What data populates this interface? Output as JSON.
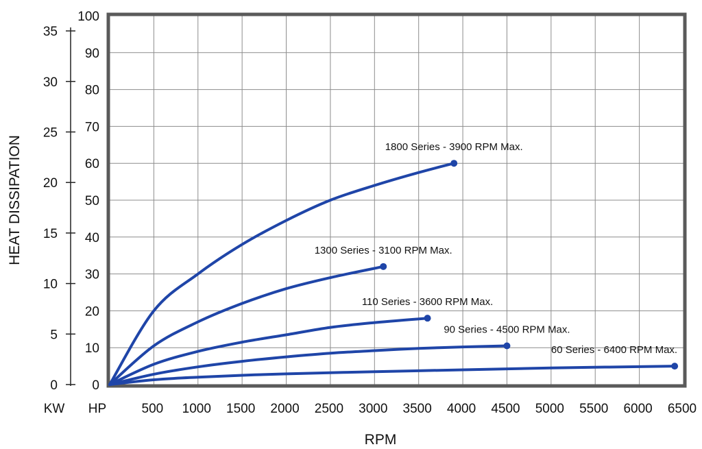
{
  "chart_data": {
    "type": "line",
    "xlabel": "RPM",
    "ylabel": "HEAT DISSIPATION",
    "xlim": [
      0,
      6500
    ],
    "x_ticks": [
      500,
      1000,
      1500,
      2000,
      2500,
      3000,
      3500,
      4000,
      4500,
      5000,
      5500,
      6000,
      6500
    ],
    "y_axes": [
      {
        "unit": "HP",
        "range": [
          0,
          100
        ],
        "ticks": [
          0,
          10,
          20,
          30,
          40,
          50,
          60,
          70,
          80,
          90,
          100
        ]
      },
      {
        "unit": "KW",
        "range": [
          0,
          36.5
        ],
        "ticks": [
          0,
          5,
          10,
          15,
          20,
          25,
          30,
          35
        ]
      }
    ],
    "grid": true,
    "line_color": "#1f45a8",
    "series": [
      {
        "name": "1800 Series - 3900 RPM Max.",
        "max_rpm": 3900,
        "max_hp": 60,
        "points": [
          [
            0,
            0
          ],
          [
            500,
            20
          ],
          [
            1000,
            30
          ],
          [
            1500,
            38
          ],
          [
            2000,
            44.5
          ],
          [
            2500,
            50
          ],
          [
            3000,
            54
          ],
          [
            3500,
            57.5
          ],
          [
            3900,
            60
          ]
        ]
      },
      {
        "name": "1300 Series - 3100 RPM Max.",
        "max_rpm": 3100,
        "max_hp": 32,
        "points": [
          [
            0,
            0
          ],
          [
            500,
            10.5
          ],
          [
            1000,
            17
          ],
          [
            1500,
            22
          ],
          [
            2000,
            26
          ],
          [
            2500,
            29
          ],
          [
            3100,
            32
          ]
        ]
      },
      {
        "name": "110 Series - 3600 RPM Max.",
        "max_rpm": 3600,
        "max_hp": 18,
        "points": [
          [
            0,
            0
          ],
          [
            500,
            5.5
          ],
          [
            1000,
            9
          ],
          [
            1500,
            11.5
          ],
          [
            2000,
            13.5
          ],
          [
            2500,
            15.5
          ],
          [
            3000,
            16.8
          ],
          [
            3600,
            18
          ]
        ]
      },
      {
        "name": "90 Series - 4500 RPM Max.",
        "max_rpm": 4500,
        "max_hp": 10.5,
        "points": [
          [
            0,
            0
          ],
          [
            500,
            2.8
          ],
          [
            1000,
            4.8
          ],
          [
            1500,
            6.3
          ],
          [
            2000,
            7.5
          ],
          [
            2500,
            8.5
          ],
          [
            3000,
            9.2
          ],
          [
            3500,
            9.8
          ],
          [
            4000,
            10.2
          ],
          [
            4500,
            10.5
          ]
        ]
      },
      {
        "name": "60 Series - 6400 RPM Max.",
        "max_rpm": 6400,
        "max_hp": 5,
        "points": [
          [
            0,
            0
          ],
          [
            500,
            1.3
          ],
          [
            1000,
            2
          ],
          [
            1500,
            2.5
          ],
          [
            2000,
            2.9
          ],
          [
            3000,
            3.5
          ],
          [
            4000,
            4
          ],
          [
            5000,
            4.5
          ],
          [
            6400,
            5
          ]
        ]
      }
    ]
  }
}
